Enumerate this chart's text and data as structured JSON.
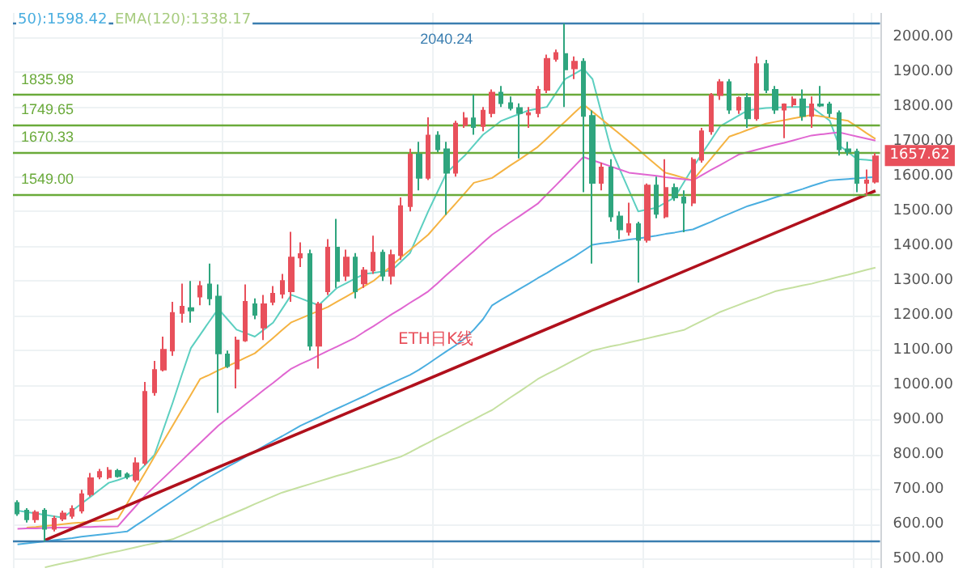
{
  "chart_data": {
    "type": "candlestick",
    "tick_labels": "y",
    "grid": true,
    "colors": [
      "#2fa57e",
      "#2fa57e",
      "#e8505b",
      "#2fa57e",
      "#e8505b",
      "#e8505b",
      "#e8505b",
      "#e8505b",
      "#e8505b",
      "#e8505b",
      "#e8505b",
      "#2fa57e",
      "#2fa57e",
      "#e8505b",
      "#e8505b",
      "#e8505b",
      "#e8505b",
      "#e8505b",
      "#e8505b",
      "#2fa57e",
      "#e8505b",
      "#2fa57e",
      "#2fa57e",
      "#2fa57e",
      "#e8505b",
      "#e8505b",
      "#2fa57e",
      "#e8505b",
      "#e8505b",
      "#e8505b",
      "#e8505b",
      "#e8505b",
      "#2fa57e",
      "#e8505b",
      "#e8505b",
      "#2fa57e",
      "#e8505b",
      "#2fa57e",
      "#e8505b",
      "#e8505b",
      "#2fa57e",
      "#e8505b",
      "#e8505b",
      "#e8505b",
      "#2fa57e",
      "#e8505b",
      "#2fa57e",
      "#2fa57e",
      "#e8505b",
      "#e8505b",
      "#2fa57e",
      "#e8505b",
      "#e8505b",
      "#2fa57e",
      "#2fa57e",
      "#2fa57e",
      "#e8505b",
      "#e8505b",
      "#e8505b",
      "#e8505b",
      "#2fa57e",
      "#e8505b",
      "#2fa57e",
      "#2fa57e",
      "#e8505b",
      "#2fa57e",
      "#2fa57e",
      "#e8505b",
      "#2fa57e",
      "#e8505b",
      "#2fa57e",
      "#e8505b",
      "#2fa57e",
      "#2fa57e",
      "#e8505b",
      "#e8505b",
      "#e8505b",
      "#e8505b",
      "#2fa57e",
      "#e8505b",
      "#2fa57e",
      "#e8505b",
      "#2fa57e",
      "#2fa57e",
      "#e8505b",
      "#e8505b",
      "#2fa57e",
      "#e8505b",
      "#2fa57e",
      "#2fa57e",
      "#2fa57e",
      "#2fa57e",
      "#2fa57e",
      "#e8505b",
      "#e8505b"
    ],
    "categories": [
      null,
      null,
      null,
      null,
      null,
      null,
      null,
      null,
      null,
      null,
      null,
      null,
      null,
      null,
      null,
      null,
      null,
      null,
      null,
      null,
      null,
      null,
      null,
      null,
      null,
      null,
      null,
      null,
      null,
      null,
      null,
      null,
      null,
      null,
      null,
      null,
      null,
      null,
      null,
      null,
      null,
      null,
      null,
      null,
      null,
      null,
      null,
      null,
      null,
      null,
      null,
      null,
      null,
      null,
      null,
      null,
      null,
      null,
      null,
      null,
      null,
      null,
      null,
      null,
      null,
      null,
      null,
      null,
      null,
      null,
      null,
      null,
      null,
      null,
      null,
      null,
      null,
      null,
      null,
      null,
      null,
      null,
      null,
      null,
      null,
      null,
      null,
      null,
      null,
      null,
      null,
      null,
      null,
      null,
      null
    ],
    "ohlc": [
      [
        662,
        670,
        625,
        632
      ],
      [
        640,
        647,
        606,
        615
      ],
      [
        615,
        641,
        605,
        635
      ],
      [
        640,
        647,
        551,
        588
      ],
      [
        588,
        625,
        580,
        617
      ],
      [
        617,
        640,
        610,
        632
      ],
      [
        625,
        655,
        617,
        645
      ],
      [
        640,
        700,
        632,
        687
      ],
      [
        687,
        748,
        680,
        733
      ],
      [
        738,
        760,
        730,
        751
      ],
      [
        736,
        765,
        730,
        755
      ],
      [
        754,
        760,
        735,
        739
      ],
      [
        744,
        750,
        730,
        737
      ],
      [
        729,
        793,
        722,
        776
      ],
      [
        777,
        1010,
        770,
        981
      ],
      [
        980,
        1070,
        970,
        1044
      ],
      [
        1045,
        1140,
        1040,
        1102
      ],
      [
        1100,
        1240,
        1085,
        1208
      ],
      [
        1208,
        1292,
        1180,
        1226
      ],
      [
        1222,
        1300,
        1180,
        1215
      ],
      [
        1255,
        1300,
        1230,
        1285
      ],
      [
        1290,
        1350,
        1230,
        1250
      ],
      [
        1255,
        1290,
        921,
        1092
      ],
      [
        1089,
        1100,
        1050,
        1055
      ],
      [
        1048,
        1140,
        991,
        1129
      ],
      [
        1129,
        1290,
        1125,
        1240
      ],
      [
        1233,
        1250,
        1190,
        1203
      ],
      [
        1166,
        1260,
        1130,
        1233
      ],
      [
        1240,
        1285,
        1230,
        1263
      ],
      [
        1263,
        1320,
        1250,
        1300
      ],
      [
        1270,
        1441,
        1240,
        1367
      ],
      [
        1367,
        1411,
        1340,
        1377
      ],
      [
        1377,
        1390,
        1100,
        1114
      ],
      [
        1114,
        1240,
        1048,
        1233
      ],
      [
        1270,
        1420,
        1260,
        1396
      ],
      [
        1396,
        1478,
        1280,
        1300
      ],
      [
        1315,
        1390,
        1300,
        1367
      ],
      [
        1367,
        1380,
        1250,
        1270
      ],
      [
        1293,
        1340,
        1280,
        1330
      ],
      [
        1330,
        1430,
        1320,
        1381
      ],
      [
        1381,
        1390,
        1300,
        1315
      ],
      [
        1315,
        1390,
        1290,
        1374
      ],
      [
        1374,
        1540,
        1360,
        1515
      ],
      [
        1515,
        1680,
        1500,
        1663
      ],
      [
        1663,
        1700,
        1560,
        1596
      ],
      [
        1596,
        1770,
        1590,
        1718
      ],
      [
        1718,
        1730,
        1670,
        1678
      ],
      [
        1678,
        1700,
        1490,
        1611
      ],
      [
        1611,
        1760,
        1600,
        1752
      ],
      [
        1748,
        1785,
        1740,
        1767
      ],
      [
        1767,
        1835,
        1720,
        1742
      ],
      [
        1745,
        1800,
        1730,
        1789
      ],
      [
        1782,
        1850,
        1770,
        1841
      ],
      [
        1841,
        1860,
        1800,
        1811
      ],
      [
        1811,
        1830,
        1790,
        1797
      ],
      [
        1797,
        1810,
        1652,
        1782
      ],
      [
        1778,
        1800,
        1740,
        1782
      ],
      [
        1782,
        1860,
        1770,
        1849
      ],
      [
        1849,
        1950,
        1840,
        1938
      ],
      [
        1938,
        1965,
        1930,
        1955
      ],
      [
        1952,
        2040,
        1800,
        1908
      ],
      [
        1911,
        1945,
        1880,
        1930
      ],
      [
        1930,
        1940,
        1555,
        1774
      ],
      [
        1774,
        1790,
        1350,
        1582
      ],
      [
        1582,
        1640,
        1560,
        1626
      ],
      [
        1626,
        1650,
        1470,
        1485
      ],
      [
        1485,
        1500,
        1420,
        1448
      ],
      [
        1441,
        1525,
        1430,
        1463
      ],
      [
        1463,
        1470,
        1295,
        1418
      ],
      [
        1418,
        1580,
        1410,
        1574
      ],
      [
        1574,
        1600,
        1480,
        1493
      ],
      [
        1485,
        1650,
        1480,
        1567
      ],
      [
        1567,
        1580,
        1530,
        1540
      ],
      [
        1540,
        1560,
        1440,
        1525
      ],
      [
        1525,
        1655,
        1515,
        1648
      ],
      [
        1648,
        1740,
        1640,
        1730
      ],
      [
        1730,
        1840,
        1720,
        1834
      ],
      [
        1834,
        1880,
        1820,
        1871
      ],
      [
        1871,
        1880,
        1780,
        1792
      ],
      [
        1792,
        1830,
        1780,
        1826
      ],
      [
        1826,
        1840,
        1740,
        1767
      ],
      [
        1767,
        1945,
        1760,
        1923
      ],
      [
        1923,
        1935,
        1840,
        1849
      ],
      [
        1849,
        1860,
        1780,
        1792
      ],
      [
        1792,
        1810,
        1710,
        1807
      ],
      [
        1807,
        1830,
        1800,
        1822
      ],
      [
        1822,
        1850,
        1760,
        1774
      ],
      [
        1774,
        1830,
        1740,
        1807
      ],
      [
        1807,
        1860,
        1800,
        1804
      ],
      [
        1807,
        1815,
        1770,
        1782
      ],
      [
        1782,
        1790,
        1660,
        1678
      ],
      [
        1678,
        1700,
        1660,
        1671
      ],
      [
        1671,
        1680,
        1555,
        1582
      ],
      [
        1582,
        1620,
        1545,
        1589
      ],
      [
        1585,
        1667,
        1580,
        1657.62
      ]
    ],
    "series": [
      {
        "type": "line",
        "color": "#5ccfc0",
        "values": [
          640,
          636,
          632,
          628,
          624,
          620,
          640,
          660,
          680,
          700,
          720,
          728,
          737,
          745,
          772,
          800,
          875,
          950,
          1030,
          1107,
          1145,
          1183,
          1220,
          1190,
          1160,
          1150,
          1140,
          1160,
          1180,
          1220,
          1260,
          1250,
          1240,
          1230,
          1255,
          1280,
          1293,
          1307,
          1320,
          1323,
          1327,
          1330,
          1355,
          1380,
          1440,
          1500,
          1555,
          1610,
          1635,
          1660,
          1690,
          1720,
          1740,
          1760,
          1770,
          1780,
          1790,
          1795,
          1800,
          1840,
          1880,
          1895,
          1910,
          1880,
          1780,
          1680,
          1620,
          1560,
          1500,
          1505,
          1510,
          1525,
          1540,
          1583,
          1626,
          1666,
          1705,
          1745,
          1760,
          1775,
          1790,
          1794,
          1797,
          1798,
          1799,
          1800,
          1800,
          1800,
          1780,
          1760,
          1690,
          1670,
          1650,
          1648,
          1645
        ]
      },
      {
        "type": "line",
        "color": "#f5b342",
        "values": [
          null,
          591,
          593,
          596,
          598,
          601,
          604,
          606,
          609,
          611,
          614,
          617,
          660,
          706,
          750,
          795,
          840,
          884,
          929,
          973,
          1018,
          1030,
          1043,
          1055,
          1067,
          1080,
          1092,
          1114,
          1136,
          1159,
          1181,
          1192,
          1203,
          1214,
          1225,
          1240,
          1255,
          1270,
          1285,
          1300,
          1322,
          1344,
          1367,
          1389,
          1411,
          1433,
          1463,
          1493,
          1522,
          1552,
          1582,
          1589,
          1596,
          1614,
          1632,
          1649,
          1667,
          1685,
          1709,
          1734,
          1758,
          1783,
          1807,
          1786,
          1765,
          1743,
          1722,
          1700,
          1678,
          1655,
          1633,
          1611,
          1604,
          1596,
          1589,
          1621,
          1652,
          1684,
          1715,
          1724,
          1734,
          1743,
          1752,
          1757,
          1762,
          1767,
          1772,
          1777,
          1773,
          1769,
          1764,
          1760,
          1743,
          1725,
          1708
        ]
      },
      {
        "type": "line",
        "color": "#e066d1",
        "values": [
          588,
          589,
          589,
          590,
          591,
          591,
          592,
          593,
          593,
          594,
          594,
          595,
          625,
          654,
          684,
          709,
          734,
          759,
          784,
          809,
          834,
          859,
          884,
          905,
          925,
          946,
          966,
          987,
          1007,
          1028,
          1048,
          1061,
          1073,
          1086,
          1099,
          1111,
          1124,
          1137,
          1154,
          1170,
          1187,
          1204,
          1220,
          1237,
          1253,
          1270,
          1293,
          1317,
          1340,
          1363,
          1386,
          1410,
          1433,
          1451,
          1469,
          1486,
          1504,
          1522,
          1549,
          1575,
          1602,
          1629,
          1656,
          1647,
          1638,
          1629,
          1620,
          1611,
          1608,
          1605,
          1602,
          1598,
          1595,
          1592,
          1589,
          1604,
          1619,
          1633,
          1648,
          1663,
          1670,
          1677,
          1684,
          1691,
          1697,
          1704,
          1711,
          1718,
          1721,
          1724,
          1727,
          1721,
          1715,
          1709,
          1703
        ]
      },
      {
        "type": "line",
        "color": "#4aaee0",
        "values": [
          543,
          546,
          549,
          552,
          555,
          558,
          561,
          565,
          568,
          571,
          574,
          577,
          580,
          598,
          615,
          633,
          651,
          668,
          686,
          703,
          721,
          736,
          751,
          766,
          780,
          795,
          810,
          825,
          840,
          854,
          869,
          884,
          896,
          908,
          921,
          933,
          945,
          957,
          969,
          982,
          994,
          1006,
          1018,
          1030,
          1045,
          1062,
          1080,
          1098,
          1115,
          1135,
          1160,
          1190,
          1230,
          1246,
          1261,
          1277,
          1292,
          1308,
          1323,
          1339,
          1354,
          1370,
          1387,
          1404,
          1408,
          1411,
          1415,
          1419,
          1422,
          1426,
          1430,
          1435,
          1439,
          1444,
          1448,
          1459,
          1470,
          1482,
          1493,
          1504,
          1515,
          1523,
          1531,
          1540,
          1548,
          1556,
          1564,
          1573,
          1581,
          1589,
          1591,
          1593,
          1595,
          1597,
          1598.42
        ]
      },
      {
        "type": "line",
        "color": "#c5e0a0",
        "values": [
          null,
          null,
          null,
          477,
          483,
          489,
          494,
          500,
          506,
          512,
          518,
          523,
          529,
          535,
          541,
          546,
          552,
          558,
          569,
          580,
          591,
          603,
          614,
          625,
          636,
          647,
          659,
          670,
          681,
          692,
          700,
          708,
          716,
          724,
          732,
          740,
          747,
          755,
          763,
          771,
          779,
          787,
          795,
          808,
          822,
          835,
          849,
          862,
          875,
          889,
          902,
          916,
          929,
          947,
          965,
          982,
          1000,
          1018,
          1032,
          1045,
          1059,
          1073,
          1086,
          1100,
          1106,
          1112,
          1117,
          1123,
          1129,
          1135,
          1141,
          1147,
          1153,
          1159,
          1172,
          1185,
          1198,
          1211,
          1221,
          1231,
          1241,
          1250,
          1260,
          1270,
          1276,
          1281,
          1287,
          1292,
          1299,
          1305,
          1312,
          1318,
          1325,
          1332,
          1338.17
        ]
      },
      {
        "type": "line",
        "color": "#b0101c",
        "values": [
          null,
          null,
          null,
          555,
          null,
          null,
          null,
          null,
          null,
          null,
          null,
          null,
          null,
          null,
          null,
          null,
          null,
          null,
          null,
          null,
          null,
          null,
          null,
          null,
          null,
          null,
          null,
          null,
          null,
          null,
          null,
          null,
          null,
          null,
          null,
          null,
          null,
          null,
          null,
          null,
          null,
          null,
          null,
          null,
          null,
          null,
          null,
          null,
          null,
          null,
          null,
          null,
          null,
          null,
          null,
          null,
          null,
          null,
          null,
          null,
          null,
          null,
          null,
          null,
          null,
          null,
          null,
          null,
          null,
          null,
          null,
          null,
          null,
          null,
          null,
          null,
          null,
          null,
          null,
          null,
          null,
          null,
          null,
          null,
          null,
          null,
          null,
          null,
          null,
          null,
          null,
          null,
          null,
          null,
          1559
        ]
      }
    ],
    "ylim": [
      475,
      2070
    ],
    "yticks": [
      {
        "value": 500,
        "label": "500.00"
      },
      {
        "value": 600,
        "label": "600.00"
      },
      {
        "value": 700,
        "label": "700.00"
      },
      {
        "value": 800,
        "label": "800.00"
      },
      {
        "value": 900,
        "label": "900.00"
      },
      {
        "value": 1000,
        "label": "1000.00"
      },
      {
        "value": 1100,
        "label": "1100.00"
      },
      {
        "value": 1200,
        "label": "1200.00"
      },
      {
        "value": 1300,
        "label": "1300.00"
      },
      {
        "value": 1400,
        "label": "1400.00"
      },
      {
        "value": 1500,
        "label": "1500.00"
      },
      {
        "value": 1600,
        "label": "1600.00"
      },
      {
        "value": 1700,
        "label": "1700.00"
      },
      {
        "value": 1800,
        "label": "1800.00"
      },
      {
        "value": 1900,
        "label": "1900.00"
      },
      {
        "value": 2000,
        "label": "2000.00"
      }
    ],
    "ref_lines": [
      {
        "axis": "y",
        "value": 2040.24,
        "label": "2040.24",
        "color": "#3a7eb0"
      },
      {
        "axis": "y",
        "value": 1835.98,
        "label": "1835.98",
        "color": "#6aaa3a"
      },
      {
        "axis": "y",
        "value": 1749.65,
        "label": "1749.65",
        "color": "#6aaa3a"
      },
      {
        "axis": "y",
        "value": 1670.33,
        "label": "1670.33",
        "color": "#6aaa3a"
      },
      {
        "axis": "y",
        "value": 1549.0,
        "label": "1549.00",
        "color": "#6aaa3a"
      },
      {
        "axis": "y",
        "value": 554,
        "label": null,
        "color": "#3a7eb0"
      }
    ],
    "annotations": [
      "50):1598.42",
      "EMA(120):1338.17",
      "ETH日K线",
      {
        "text": "1657.62",
        "y": 1657.62
      }
    ]
  }
}
